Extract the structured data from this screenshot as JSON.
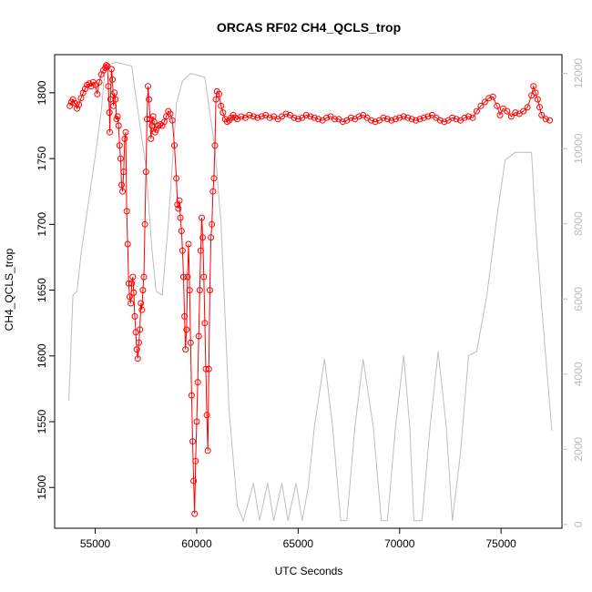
{
  "chart_data": {
    "type": "line",
    "title": "ORCAS RF02 CH4_QCLS_trop",
    "xlabel": "UTC Seconds",
    "ylabel": "CH4_QCLS_trop",
    "xlim": [
      53000,
      78000
    ],
    "ylim": [
      1469,
      1829
    ],
    "y2lim": [
      -100,
      12500
    ],
    "x_ticks": [
      55000,
      60000,
      65000,
      70000,
      75000
    ],
    "y_ticks": [
      1500,
      1550,
      1600,
      1650,
      1700,
      1750,
      1800
    ],
    "y2_ticks": [
      0,
      2000,
      4000,
      6000,
      8000,
      10000,
      12000
    ],
    "colors": {
      "ch4": "#ff0000",
      "altitude": "#bebebe"
    },
    "series": [
      {
        "points": [
          [
            53750,
            1790
          ],
          [
            53830,
            1793
          ],
          [
            53900,
            1795
          ],
          [
            54000,
            1792
          ],
          [
            54100,
            1788
          ],
          [
            54200,
            1791
          ],
          [
            54300,
            1796
          ],
          [
            54400,
            1800
          ],
          [
            54500,
            1803
          ],
          [
            54600,
            1806
          ],
          [
            54700,
            1807
          ],
          [
            54800,
            1805
          ],
          [
            54900,
            1808
          ],
          [
            55000,
            1806
          ],
          [
            55100,
            1799
          ],
          [
            55200,
            1808
          ],
          [
            55300,
            1814
          ],
          [
            55400,
            1817
          ],
          [
            55500,
            1819
          ],
          [
            55550,
            1821
          ],
          [
            55600,
            1820
          ],
          [
            55650,
            1805
          ],
          [
            55700,
            1785
          ],
          [
            55720,
            1770
          ],
          [
            55750,
            1795
          ],
          [
            55800,
            1818
          ],
          [
            55850,
            1810
          ],
          [
            55900,
            1790
          ],
          [
            55950,
            1800
          ],
          [
            56000,
            1795
          ],
          [
            56050,
            1780
          ],
          [
            56100,
            1782
          ],
          [
            56150,
            1775
          ],
          [
            56200,
            1760
          ],
          [
            56250,
            1750
          ],
          [
            56300,
            1730
          ],
          [
            56350,
            1725
          ],
          [
            56400,
            1740
          ],
          [
            56450,
            1765
          ],
          [
            56500,
            1770
          ],
          [
            56550,
            1710
          ],
          [
            56600,
            1685
          ],
          [
            56650,
            1655
          ],
          [
            56700,
            1645
          ],
          [
            56750,
            1640
          ],
          [
            56800,
            1655
          ],
          [
            56850,
            1660
          ],
          [
            56900,
            1648
          ],
          [
            56950,
            1630
          ],
          [
            57000,
            1618
          ],
          [
            57050,
            1605
          ],
          [
            57100,
            1598
          ],
          [
            57150,
            1610
          ],
          [
            57200,
            1620
          ],
          [
            57250,
            1640
          ],
          [
            57300,
            1635
          ],
          [
            57350,
            1650
          ],
          [
            57400,
            1660
          ],
          [
            57450,
            1700
          ],
          [
            57500,
            1740
          ],
          [
            57550,
            1780
          ],
          [
            57600,
            1805
          ],
          [
            57650,
            1795
          ],
          [
            57700,
            1780
          ],
          [
            57750,
            1765
          ],
          [
            57800,
            1775
          ],
          [
            57850,
            1782
          ],
          [
            57900,
            1778
          ],
          [
            57950,
            1770
          ],
          [
            58000,
            1772
          ],
          [
            58100,
            1775
          ],
          [
            58200,
            1776
          ],
          [
            58300,
            1775
          ],
          [
            58400,
            1778
          ],
          [
            58500,
            1782
          ],
          [
            58600,
            1786
          ],
          [
            58700,
            1784
          ],
          [
            58800,
            1779
          ],
          [
            58900,
            1760
          ],
          [
            59000,
            1735
          ],
          [
            59050,
            1715
          ],
          [
            59100,
            1712
          ],
          [
            59150,
            1718
          ],
          [
            59200,
            1705
          ],
          [
            59250,
            1695
          ],
          [
            59300,
            1680
          ],
          [
            59350,
            1660
          ],
          [
            59400,
            1630
          ],
          [
            59450,
            1605
          ],
          [
            59500,
            1620
          ],
          [
            59550,
            1660
          ],
          [
            59600,
            1685
          ],
          [
            59650,
            1650
          ],
          [
            59700,
            1610
          ],
          [
            59750,
            1570
          ],
          [
            59800,
            1535
          ],
          [
            59850,
            1505
          ],
          [
            59900,
            1480
          ],
          [
            59950,
            1520
          ],
          [
            60000,
            1550
          ],
          [
            60050,
            1580
          ],
          [
            60100,
            1615
          ],
          [
            60150,
            1650
          ],
          [
            60200,
            1680
          ],
          [
            60250,
            1705
          ],
          [
            60300,
            1690
          ],
          [
            60350,
            1660
          ],
          [
            60400,
            1625
          ],
          [
            60450,
            1590
          ],
          [
            60500,
            1555
          ],
          [
            60550,
            1528
          ],
          [
            60600,
            1590
          ],
          [
            60650,
            1650
          ],
          [
            60700,
            1690
          ],
          [
            60750,
            1700
          ],
          [
            60800,
            1725
          ],
          [
            60850,
            1735
          ],
          [
            60900,
            1760
          ],
          [
            60950,
            1795
          ],
          [
            61000,
            1801
          ],
          [
            61100,
            1799
          ],
          [
            61200,
            1790
          ],
          [
            61300,
            1785
          ],
          [
            61400,
            1780
          ],
          [
            61500,
            1778
          ],
          [
            61600,
            1779
          ],
          [
            61700,
            1781
          ],
          [
            61800,
            1783
          ],
          [
            61900,
            1781
          ],
          [
            62000,
            1780
          ],
          [
            62200,
            1782
          ],
          [
            62400,
            1781
          ],
          [
            62600,
            1783
          ],
          [
            62800,
            1782
          ],
          [
            63000,
            1781
          ],
          [
            63200,
            1782
          ],
          [
            63400,
            1783
          ],
          [
            63600,
            1781
          ],
          [
            63800,
            1782
          ],
          [
            64000,
            1780
          ],
          [
            64200,
            1782
          ],
          [
            64400,
            1784
          ],
          [
            64600,
            1783
          ],
          [
            64800,
            1781
          ],
          [
            65000,
            1780
          ],
          [
            65200,
            1781
          ],
          [
            65400,
            1783
          ],
          [
            65600,
            1782
          ],
          [
            65800,
            1781
          ],
          [
            66000,
            1780
          ],
          [
            66200,
            1779
          ],
          [
            66400,
            1781
          ],
          [
            66600,
            1782
          ],
          [
            66800,
            1780
          ],
          [
            67000,
            1780
          ],
          [
            67200,
            1778
          ],
          [
            67400,
            1779
          ],
          [
            67600,
            1781
          ],
          [
            67800,
            1780
          ],
          [
            68000,
            1782
          ],
          [
            68200,
            1783
          ],
          [
            68400,
            1781
          ],
          [
            68600,
            1779
          ],
          [
            68800,
            1778
          ],
          [
            69000,
            1779
          ],
          [
            69200,
            1781
          ],
          [
            69400,
            1780
          ],
          [
            69600,
            1779
          ],
          [
            69800,
            1780
          ],
          [
            70000,
            1781
          ],
          [
            70200,
            1782
          ],
          [
            70400,
            1781
          ],
          [
            70600,
            1780
          ],
          [
            70800,
            1779
          ],
          [
            71000,
            1780
          ],
          [
            71200,
            1781
          ],
          [
            71400,
            1782
          ],
          [
            71600,
            1783
          ],
          [
            71800,
            1781
          ],
          [
            72000,
            1779
          ],
          [
            72200,
            1778
          ],
          [
            72400,
            1779
          ],
          [
            72600,
            1781
          ],
          [
            72800,
            1780
          ],
          [
            73000,
            1779
          ],
          [
            73200,
            1781
          ],
          [
            73400,
            1782
          ],
          [
            73600,
            1781
          ],
          [
            73800,
            1786
          ],
          [
            74000,
            1790
          ],
          [
            74200,
            1793
          ],
          [
            74400,
            1796
          ],
          [
            74600,
            1797
          ],
          [
            74800,
            1790
          ],
          [
            74950,
            1783
          ],
          [
            75100,
            1788
          ],
          [
            75300,
            1786
          ],
          [
            75500,
            1782
          ],
          [
            75700,
            1785
          ],
          [
            75900,
            1784
          ],
          [
            76100,
            1786
          ],
          [
            76300,
            1789
          ],
          [
            76500,
            1798
          ],
          [
            76600,
            1805
          ],
          [
            76700,
            1800
          ],
          [
            76800,
            1795
          ],
          [
            76900,
            1789
          ],
          [
            77000,
            1783
          ],
          [
            77200,
            1780
          ],
          [
            77400,
            1779
          ]
        ]
      },
      {
        "points": [
          [
            53700,
            3300
          ],
          [
            53900,
            6100
          ],
          [
            54100,
            6200
          ],
          [
            54300,
            7200
          ],
          [
            54700,
            8700
          ],
          [
            55000,
            9800
          ],
          [
            55300,
            11000
          ],
          [
            55500,
            12200
          ],
          [
            56000,
            12300
          ],
          [
            56800,
            12200
          ],
          [
            57000,
            11400
          ],
          [
            57500,
            9500
          ],
          [
            57800,
            7300
          ],
          [
            58000,
            6200
          ],
          [
            58300,
            6100
          ],
          [
            58600,
            8000
          ],
          [
            59000,
            11200
          ],
          [
            59300,
            11800
          ],
          [
            59700,
            12000
          ],
          [
            60400,
            11900
          ],
          [
            60900,
            10000
          ],
          [
            61200,
            8000
          ],
          [
            61600,
            3000
          ],
          [
            62000,
            500
          ],
          [
            62300,
            100
          ],
          [
            62800,
            1100
          ],
          [
            63100,
            100
          ],
          [
            63500,
            1100
          ],
          [
            63800,
            100
          ],
          [
            64200,
            1100
          ],
          [
            64500,
            100
          ],
          [
            64900,
            1100
          ],
          [
            65200,
            100
          ],
          [
            65500,
            1000
          ],
          [
            65800,
            2600
          ],
          [
            66300,
            4400
          ],
          [
            66700,
            2600
          ],
          [
            67100,
            100
          ],
          [
            67400,
            100
          ],
          [
            67800,
            2600
          ],
          [
            68200,
            4400
          ],
          [
            68700,
            2600
          ],
          [
            69100,
            100
          ],
          [
            69400,
            100
          ],
          [
            69800,
            2600
          ],
          [
            70200,
            4500
          ],
          [
            70500,
            2600
          ],
          [
            70700,
            100
          ],
          [
            71100,
            100
          ],
          [
            71500,
            2600
          ],
          [
            71900,
            4600
          ],
          [
            72300,
            2600
          ],
          [
            72600,
            100
          ],
          [
            73000,
            1900
          ],
          [
            73400,
            4500
          ],
          [
            73800,
            4600
          ],
          [
            74300,
            6100
          ],
          [
            74800,
            8200
          ],
          [
            75200,
            9700
          ],
          [
            75700,
            9900
          ],
          [
            76500,
            9900
          ],
          [
            76700,
            8000
          ],
          [
            77000,
            5800
          ],
          [
            77500,
            2500
          ]
        ]
      }
    ]
  }
}
